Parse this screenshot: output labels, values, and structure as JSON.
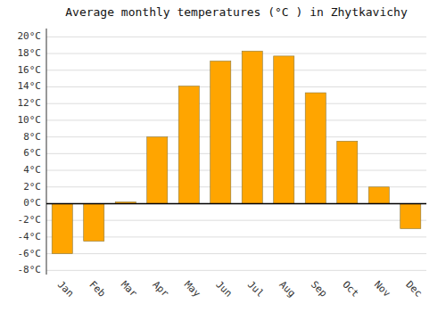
{
  "chart_data": {
    "type": "bar",
    "title": "Average monthly temperatures (°C ) in Zhytkavichy",
    "categories": [
      "Jan",
      "Feb",
      "Mar",
      "Apr",
      "May",
      "Jun",
      "Jul",
      "Aug",
      "Sep",
      "Oct",
      "Nov",
      "Dec"
    ],
    "values": [
      -6.0,
      -4.5,
      0.2,
      8.0,
      14.1,
      17.1,
      18.3,
      17.7,
      13.3,
      7.5,
      2.0,
      -3.0
    ],
    "color": "#FFA500",
    "ylim": [
      -8.5,
      21
    ],
    "yticks": [
      {
        "value": -8,
        "label": "-8°C"
      },
      {
        "value": -6,
        "label": "-6°C"
      },
      {
        "value": -4,
        "label": "-4°C"
      },
      {
        "value": -2,
        "label": "-2°C"
      },
      {
        "value": 0,
        "label": "0°C"
      },
      {
        "value": 2,
        "label": "2°C"
      },
      {
        "value": 4,
        "label": "4°C"
      },
      {
        "value": 6,
        "label": "6°C"
      },
      {
        "value": 8,
        "label": "8°C"
      },
      {
        "value": 10,
        "label": "10°C"
      },
      {
        "value": 12,
        "label": "12°C"
      },
      {
        "value": 14,
        "label": "14°C"
      },
      {
        "value": 16,
        "label": "16°C"
      },
      {
        "value": 18,
        "label": "18°C"
      },
      {
        "value": 20,
        "label": "20°C"
      }
    ],
    "grid": true
  }
}
